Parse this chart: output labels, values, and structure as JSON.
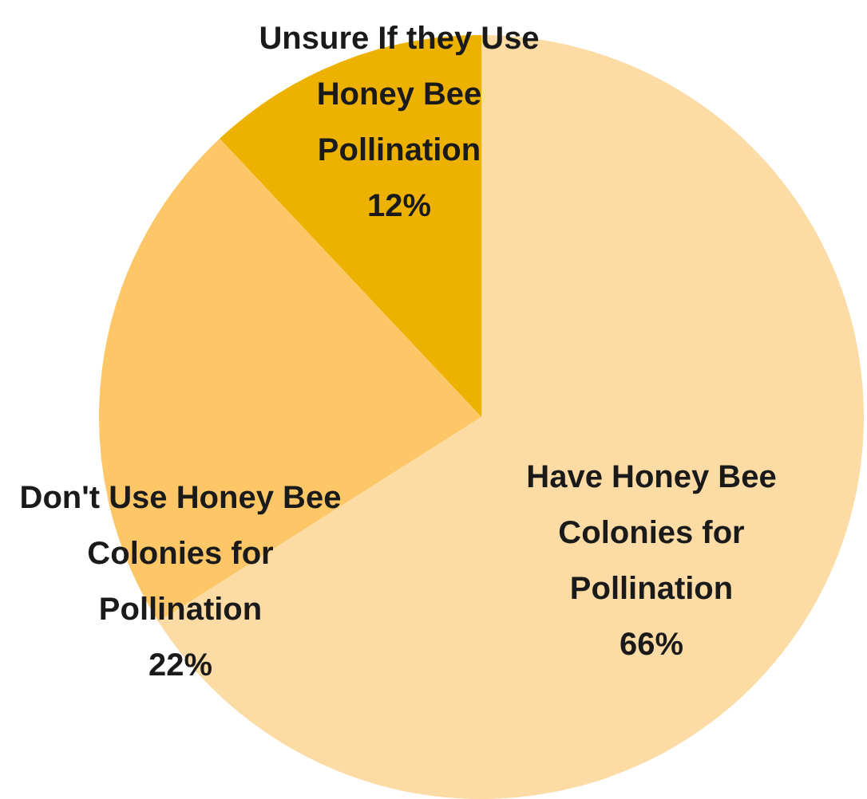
{
  "chart_data": {
    "type": "pie",
    "categories": [
      "Have Honey Bee Colonies for Pollination",
      "Don't Use Honey Bee Colonies for Pollination",
      "Unsure If they Use Honey Bee Pollination"
    ],
    "values": [
      66,
      22,
      12
    ],
    "colors": [
      "#fddba5",
      "#fdc768",
      "#edb100"
    ],
    "value_labels": [
      "66%",
      "22%",
      "12%"
    ],
    "legend": false
  }
}
